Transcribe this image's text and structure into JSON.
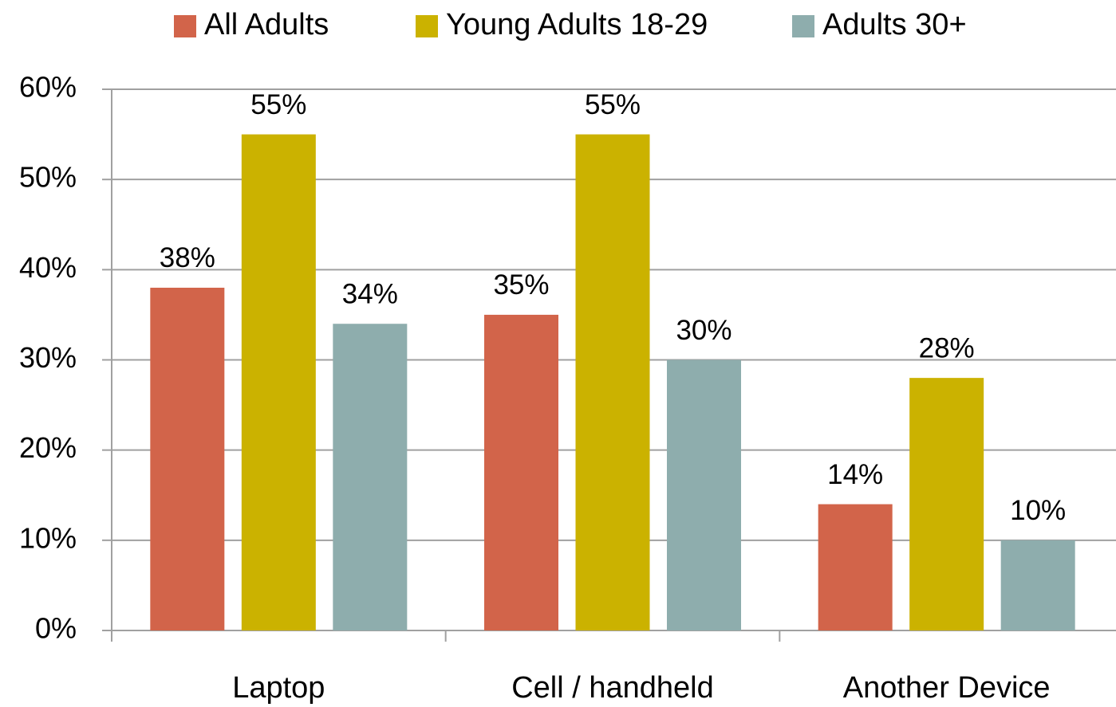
{
  "chart_data": {
    "type": "bar",
    "categories": [
      "Laptop",
      "Cell / handheld",
      "Another Device"
    ],
    "series": [
      {
        "name": "All Adults",
        "color": "#d2644a",
        "values": [
          38,
          35,
          14
        ],
        "value_labels": [
          "38%",
          "35%",
          "14%"
        ]
      },
      {
        "name": "Young Adults 18-29",
        "color": "#cbb200",
        "values": [
          55,
          55,
          28
        ],
        "value_labels": [
          "55%",
          "55%",
          "28%"
        ]
      },
      {
        "name": "Adults 30+",
        "color": "#8eadad",
        "values": [
          34,
          30,
          10
        ],
        "value_labels": [
          "34%",
          "30%",
          "10%"
        ]
      }
    ],
    "ylim": [
      0,
      60
    ],
    "yticks": [
      {
        "value": 0,
        "label": "0%"
      },
      {
        "value": 10,
        "label": "10%"
      },
      {
        "value": 20,
        "label": "20%"
      },
      {
        "value": 30,
        "label": "30%"
      },
      {
        "value": 40,
        "label": "40%"
      },
      {
        "value": 50,
        "label": "50%"
      },
      {
        "value": 60,
        "label": "60%"
      }
    ],
    "grid": true,
    "legend": "top"
  }
}
